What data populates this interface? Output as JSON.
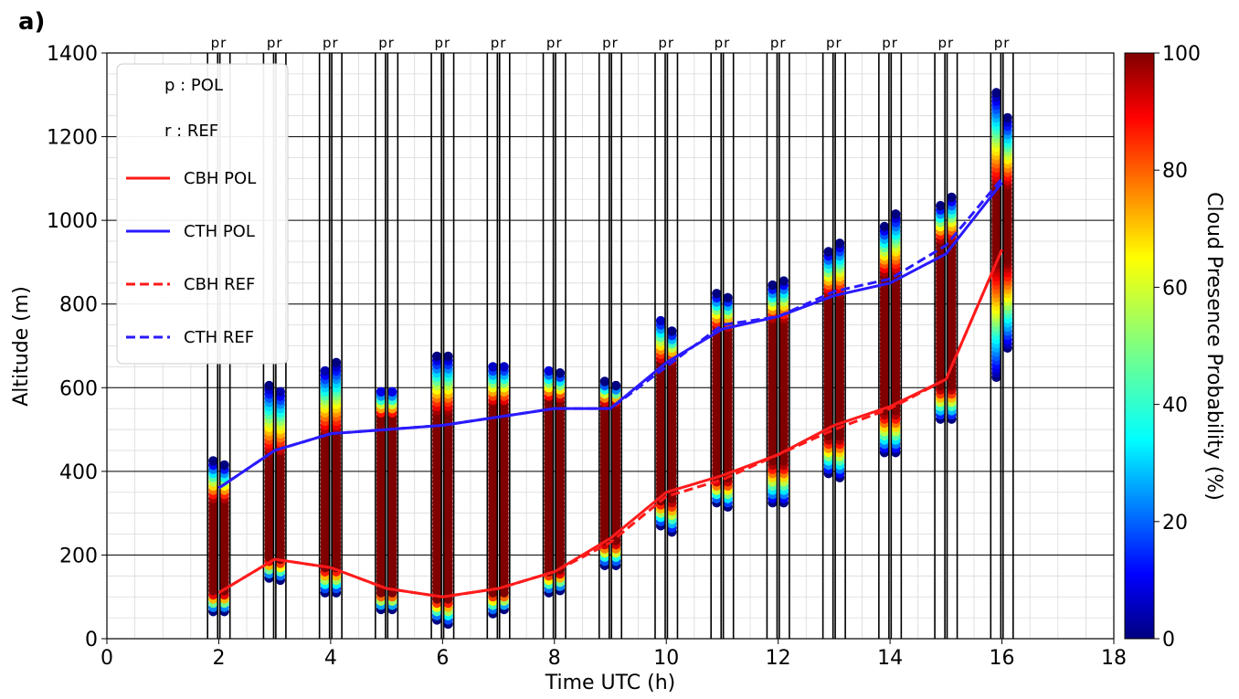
{
  "panel_label": "a)",
  "colors": {
    "cbh_pol": "#ff1a1a",
    "cth_pol": "#2a1aff",
    "cbh_ref": "#ff1a1a",
    "cth_ref": "#2a1aff",
    "grid_major": "#000000",
    "grid_minor": "#d9d9d9"
  },
  "legend": {
    "note_p": "p : POL",
    "note_r": "r : REF",
    "items": [
      {
        "label": "CBH POL",
        "style": "solid",
        "color": "#ff1a1a"
      },
      {
        "label": "CTH POL",
        "style": "solid",
        "color": "#2a1aff"
      },
      {
        "label": "CBH REF",
        "style": "dashed",
        "color": "#ff1a1a"
      },
      {
        "label": "CTH REF",
        "style": "dashed",
        "color": "#2a1aff"
      }
    ]
  },
  "colorbar": {
    "label": "Cloud Presence Probability (%)",
    "ticks": [
      "0",
      "20",
      "40",
      "60",
      "80",
      "100"
    ],
    "colormap": "jet",
    "range": [
      0,
      100
    ]
  },
  "chart_data": {
    "type": "line",
    "xlabel": "Time UTC (h)",
    "ylabel": "Altitude (m)",
    "xlim": [
      0,
      18
    ],
    "ylim": [
      0,
      1400
    ],
    "xticks": [
      "0",
      "2",
      "4",
      "6",
      "8",
      "10",
      "12",
      "14",
      "16",
      "18"
    ],
    "yticks": [
      "0",
      "200",
      "400",
      "600",
      "800",
      "1000",
      "1200",
      "1400"
    ],
    "grid": "major horizontal lines black, minor grid light gray",
    "legend_position": "upper-left",
    "column_markers": [
      "pr",
      "pr",
      "pr",
      "pr",
      "pr",
      "pr",
      "pr",
      "pr",
      "pr",
      "pr",
      "pr",
      "pr",
      "pr",
      "pr",
      "pr"
    ],
    "x": [
      2,
      3,
      4,
      5,
      6,
      7,
      8,
      9,
      10,
      11,
      12,
      13,
      14,
      15,
      16
    ],
    "series": [
      {
        "name": "CBH POL",
        "style": "solid",
        "values": [
          110,
          190,
          170,
          120,
          100,
          120,
          160,
          240,
          350,
          390,
          440,
          510,
          555,
          620,
          930
        ]
      },
      {
        "name": "CTH POL",
        "style": "solid",
        "values": [
          360,
          450,
          490,
          500,
          510,
          530,
          550,
          550,
          660,
          740,
          770,
          820,
          850,
          920,
          1090
        ]
      },
      {
        "name": "CBH REF",
        "style": "dashed",
        "values": [
          110,
          190,
          170,
          120,
          100,
          120,
          160,
          230,
          340,
          380,
          440,
          500,
          550,
          620,
          930
        ]
      },
      {
        "name": "CTH REF",
        "style": "dashed",
        "values": [
          360,
          450,
          490,
          500,
          510,
          530,
          550,
          550,
          650,
          750,
          770,
          830,
          860,
          940,
          1100
        ]
      }
    ],
    "profiles": [
      {
        "hour": 2,
        "p_range": [
          65,
          425
        ],
        "r_range": [
          65,
          415
        ],
        "core": [
          110,
          330
        ]
      },
      {
        "hour": 3,
        "p_range": [
          145,
          605
        ],
        "r_range": [
          140,
          595
        ],
        "core": [
          190,
          440
        ]
      },
      {
        "hour": 4,
        "p_range": [
          110,
          645
        ],
        "r_range": [
          110,
          660
        ],
        "core": [
          170,
          490
        ]
      },
      {
        "hour": 5,
        "p_range": [
          70,
          595
        ],
        "r_range": [
          70,
          595
        ],
        "core": [
          110,
          530
        ]
      },
      {
        "hour": 6,
        "p_range": [
          45,
          675
        ],
        "r_range": [
          35,
          675
        ],
        "core": [
          95,
          540
        ]
      },
      {
        "hour": 7,
        "p_range": [
          60,
          655
        ],
        "r_range": [
          70,
          655
        ],
        "core": [
          110,
          560
        ]
      },
      {
        "hour": 8,
        "p_range": [
          110,
          645
        ],
        "r_range": [
          115,
          635
        ],
        "core": [
          160,
          570
        ]
      },
      {
        "hour": 9,
        "p_range": [
          175,
          615
        ],
        "r_range": [
          175,
          605
        ],
        "core": [
          230,
          560
        ]
      },
      {
        "hour": 10,
        "p_range": [
          270,
          765
        ],
        "r_range": [
          255,
          735
        ],
        "core": [
          330,
          660
        ]
      },
      {
        "hour": 11,
        "p_range": [
          325,
          825
        ],
        "r_range": [
          315,
          815
        ],
        "core": [
          380,
          740
        ]
      },
      {
        "hour": 12,
        "p_range": [
          325,
          845
        ],
        "r_range": [
          325,
          855
        ],
        "core": [
          420,
          760
        ]
      },
      {
        "hour": 13,
        "p_range": [
          395,
          925
        ],
        "r_range": [
          385,
          945
        ],
        "core": [
          480,
          820
        ]
      },
      {
        "hour": 14,
        "p_range": [
          445,
          985
        ],
        "r_range": [
          445,
          1015
        ],
        "core": [
          540,
          870
        ]
      },
      {
        "hour": 15,
        "p_range": [
          525,
          1035
        ],
        "r_range": [
          525,
          1055
        ],
        "core": [
          600,
          950
        ]
      },
      {
        "hour": 16,
        "p_range": [
          625,
          1305
        ],
        "r_range": [
          695,
          1245
        ],
        "core": [
          900,
          1080
        ]
      }
    ]
  }
}
